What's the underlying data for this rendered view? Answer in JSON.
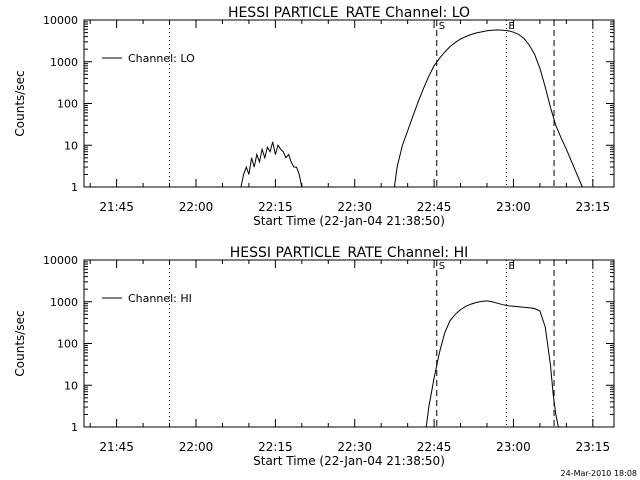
{
  "footer_timestamp": "24-Mar-2010 18:08",
  "chart_data": [
    {
      "type": "line",
      "title": "HESSI PARTICLE_RATE Channel: LO",
      "xlabel": "Start Time (22-Jan-04 21:38:50)",
      "ylabel": "Counts/sec",
      "yscale": "log",
      "ylim": [
        1,
        10000
      ],
      "xlim": [
        "21:38:50",
        "23:19:00"
      ],
      "x_ticks": [
        "21:45",
        "22:00",
        "22:15",
        "22:30",
        "22:45",
        "23:00",
        "23:15"
      ],
      "y_ticks": [
        "1",
        "10",
        "100",
        "1000",
        "10000"
      ],
      "legend": "Channel: LO",
      "legend_position": "top-left",
      "markers": [
        {
          "label": "",
          "time": "21:55:00",
          "style": "dotted"
        },
        {
          "label": "S",
          "time": "22:45:30",
          "style": "dashed"
        },
        {
          "label": "E",
          "time": "22:58:40",
          "style": "dotted"
        },
        {
          "label": "",
          "time": "23:07:40",
          "style": "dashed"
        },
        {
          "label": "",
          "time": "23:15:00",
          "style": "dotted"
        }
      ],
      "series": [
        {
          "segments": [
            {
              "x": [
                "22:08:30",
                "22:09:00",
                "22:09:30",
                "22:10:00",
                "22:10:30",
                "22:11:00",
                "22:11:30",
                "22:12:00",
                "22:12:30",
                "22:13:00",
                "22:13:30",
                "22:14:00",
                "22:14:30",
                "22:15:00",
                "22:15:30",
                "22:16:00",
                "22:16:30",
                "22:17:00",
                "22:17:30",
                "22:18:00",
                "22:18:30",
                "22:19:00",
                "22:19:30",
                "22:20:00"
              ],
              "y": [
                1,
                2,
                3,
                2,
                5,
                3,
                6,
                4,
                8,
                5,
                9,
                7,
                12,
                6,
                10,
                8,
                7,
                5,
                6,
                4,
                3,
                3,
                2,
                1
              ]
            },
            {
              "x": [
                "22:37:30",
                "22:38:00",
                "22:39:00",
                "22:40:00",
                "22:41:00",
                "22:42:00",
                "22:43:00",
                "22:44:00",
                "22:45:00",
                "22:46:00",
                "22:47:00",
                "22:48:00",
                "22:49:00",
                "22:50:00",
                "22:51:00",
                "22:52:00",
                "22:53:00",
                "22:54:00",
                "22:55:00",
                "22:56:00",
                "22:57:00",
                "22:58:00",
                "22:59:00",
                "23:00:00",
                "23:01:00",
                "23:02:00",
                "23:03:00",
                "23:04:00",
                "23:05:00",
                "23:06:00",
                "23:07:00",
                "23:08:00",
                "23:09:00",
                "23:10:00",
                "23:11:00",
                "23:12:00",
                "23:13:00"
              ],
              "y": [
                1,
                3,
                10,
                22,
                50,
                110,
                230,
                450,
                800,
                1200,
                1700,
                2300,
                2900,
                3500,
                4000,
                4500,
                4900,
                5200,
                5500,
                5700,
                5800,
                5700,
                5500,
                5100,
                4500,
                3600,
                2500,
                1500,
                700,
                250,
                80,
                30,
                15,
                8,
                4,
                2,
                1
              ]
            }
          ]
        }
      ]
    },
    {
      "type": "line",
      "title": "HESSI PARTICLE_RATE Channel: HI",
      "xlabel": "Start Time (22-Jan-04 21:38:50)",
      "ylabel": "Counts/sec",
      "yscale": "log",
      "ylim": [
        1,
        10000
      ],
      "xlim": [
        "21:38:50",
        "23:19:00"
      ],
      "x_ticks": [
        "21:45",
        "22:00",
        "22:15",
        "22:30",
        "22:45",
        "23:00",
        "23:15"
      ],
      "y_ticks": [
        "1",
        "10",
        "100",
        "1000",
        "10000"
      ],
      "legend": "Channel: HI",
      "legend_position": "top-left",
      "markers": [
        {
          "label": "",
          "time": "21:55:00",
          "style": "dotted"
        },
        {
          "label": "S",
          "time": "22:45:30",
          "style": "dashed"
        },
        {
          "label": "E",
          "time": "22:58:40",
          "style": "dotted"
        },
        {
          "label": "",
          "time": "23:07:40",
          "style": "dashed"
        },
        {
          "label": "",
          "time": "23:15:00",
          "style": "dotted"
        }
      ],
      "series": [
        {
          "segments": [
            {
              "x": [
                "22:43:30",
                "22:44:00",
                "22:45:00",
                "22:46:00",
                "22:47:00",
                "22:48:00",
                "22:49:00",
                "22:50:00",
                "22:51:00",
                "22:52:00",
                "22:53:00",
                "22:54:00",
                "22:55:00",
                "22:56:00",
                "22:57:00",
                "22:58:00",
                "22:59:00",
                "23:00:00",
                "23:01:00",
                "23:02:00",
                "23:03:00",
                "23:04:00",
                "23:05:00",
                "23:06:00",
                "23:07:00",
                "23:07:30",
                "23:08:00",
                "23:08:30"
              ],
              "y": [
                1,
                3,
                15,
                60,
                180,
                350,
                500,
                650,
                780,
                880,
                960,
                1020,
                1050,
                1000,
                920,
                850,
                800,
                780,
                760,
                740,
                720,
                690,
                600,
                250,
                30,
                6,
                2,
                1
              ]
            }
          ]
        }
      ]
    }
  ]
}
